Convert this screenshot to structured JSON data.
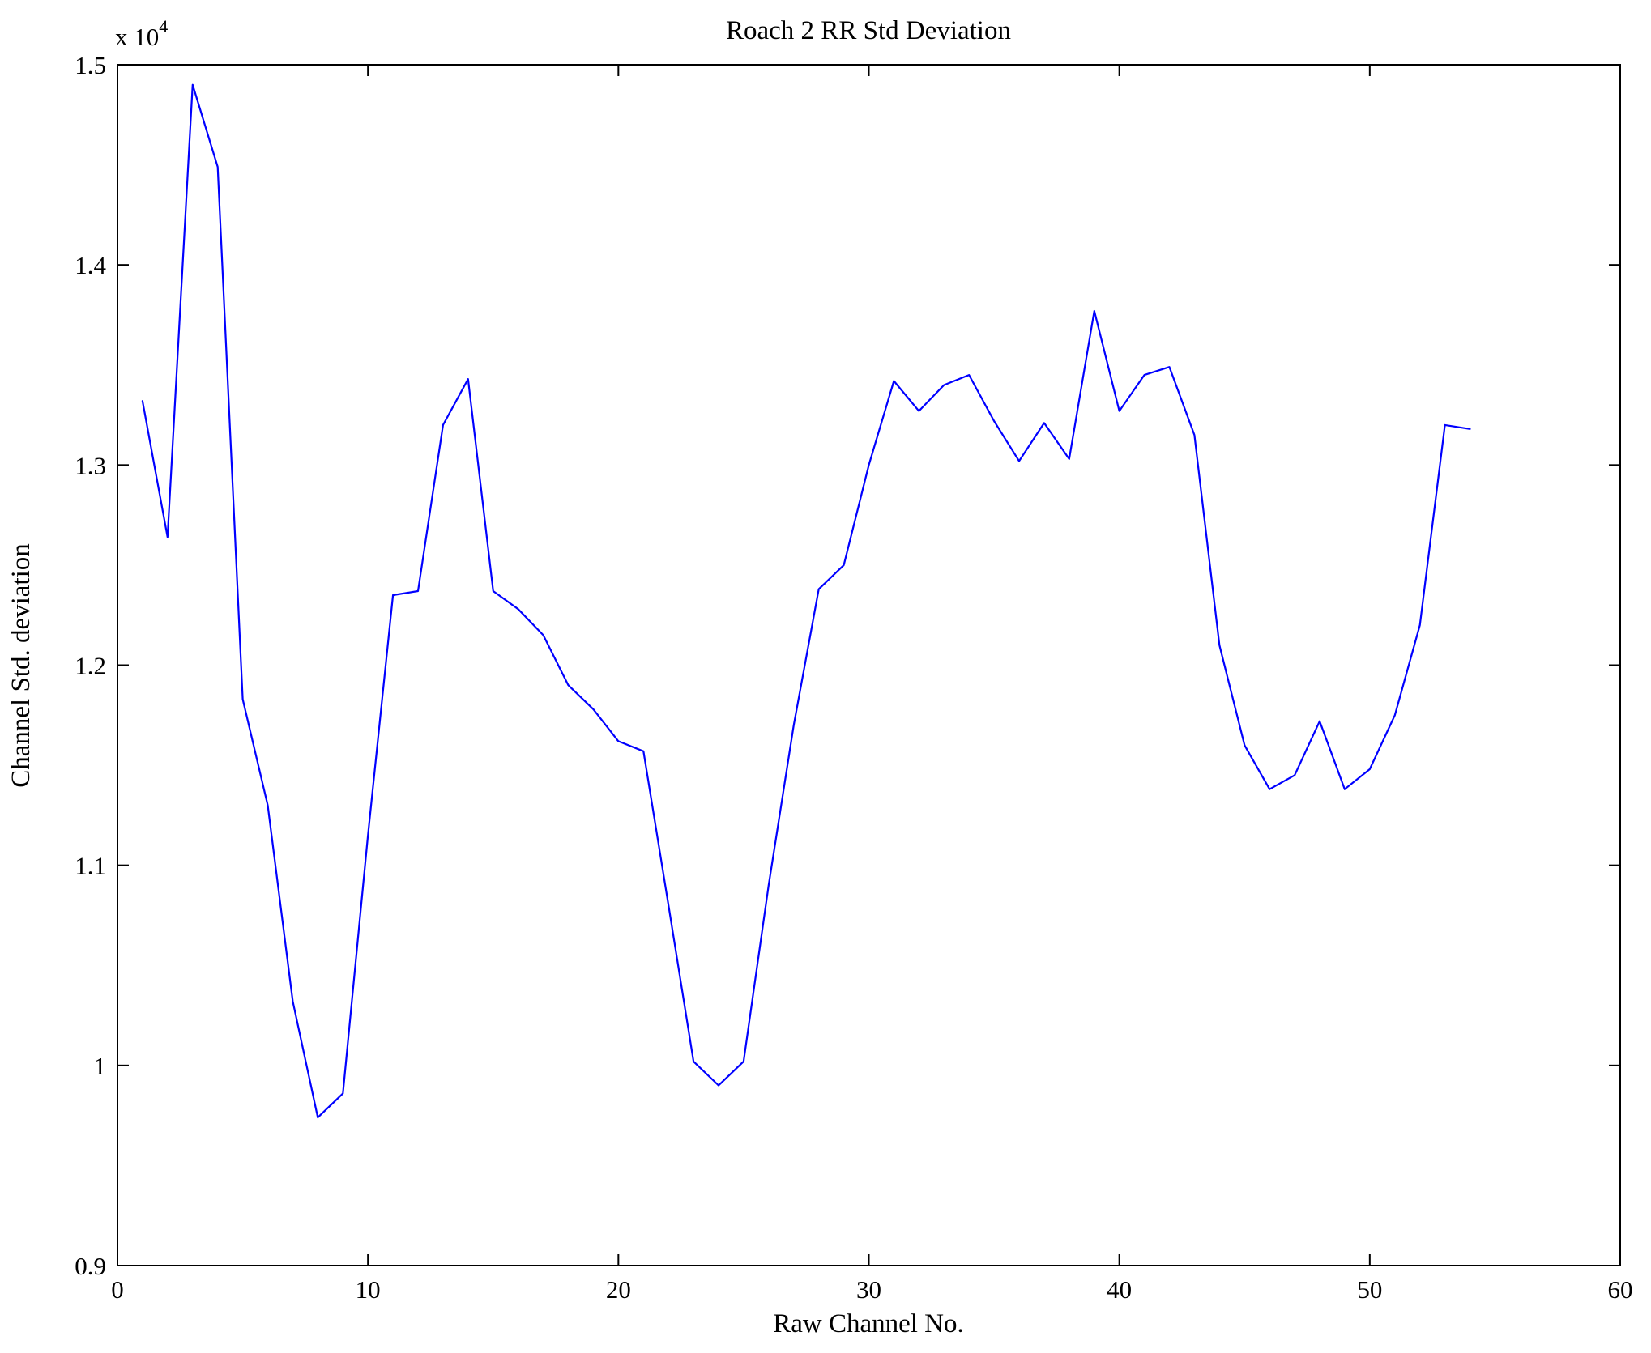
{
  "figure": {
    "background": "#ffffff"
  },
  "chart_data": {
    "type": "line",
    "title": "Roach 2 RR Std Deviation",
    "xlabel": "Raw Channel No.",
    "ylabel": "Channel Std. deviation",
    "y_multiplier_base": "x 10",
    "y_multiplier_exp": "4",
    "line_color": "#0000ff",
    "axis_color": "#000000",
    "grid": "off",
    "legend": "none",
    "xlim": [
      0,
      60
    ],
    "ylim": [
      9000,
      15000
    ],
    "x_tick_values": [
      0,
      10,
      20,
      30,
      40,
      50,
      60
    ],
    "x_tick_labels": [
      "0",
      "10",
      "20",
      "30",
      "40",
      "50",
      "60"
    ],
    "y_tick_values": [
      9000,
      10000,
      11000,
      12000,
      13000,
      14000,
      15000
    ],
    "y_tick_labels": [
      "0.9",
      "1",
      "1.1",
      "1.2",
      "1.3",
      "1.4",
      "1.5"
    ],
    "x": [
      1,
      2,
      3,
      4,
      5,
      6,
      7,
      8,
      9,
      10,
      11,
      12,
      13,
      14,
      15,
      16,
      17,
      18,
      19,
      20,
      21,
      22,
      23,
      24,
      25,
      26,
      27,
      28,
      29,
      30,
      31,
      32,
      33,
      34,
      35,
      36,
      37,
      38,
      39,
      40,
      41,
      42,
      43,
      44,
      45,
      46,
      47,
      48,
      49,
      50,
      51,
      52,
      53,
      54
    ],
    "values": [
      13320,
      12640,
      14900,
      14490,
      11830,
      11300,
      10320,
      9740,
      9860,
      11150,
      12350,
      12370,
      13200,
      13430,
      12370,
      12280,
      12150,
      11900,
      11780,
      11620,
      11570,
      10800,
      10020,
      9900,
      10020,
      10900,
      11700,
      12380,
      12500,
      13000,
      13420,
      13270,
      13400,
      13450,
      13220,
      13020,
      13210,
      13030,
      13770,
      13270,
      13450,
      13490,
      13150,
      12100,
      11600,
      11380,
      11450,
      11720,
      11380,
      11480,
      11750,
      12200,
      13200,
      13180
    ]
  }
}
